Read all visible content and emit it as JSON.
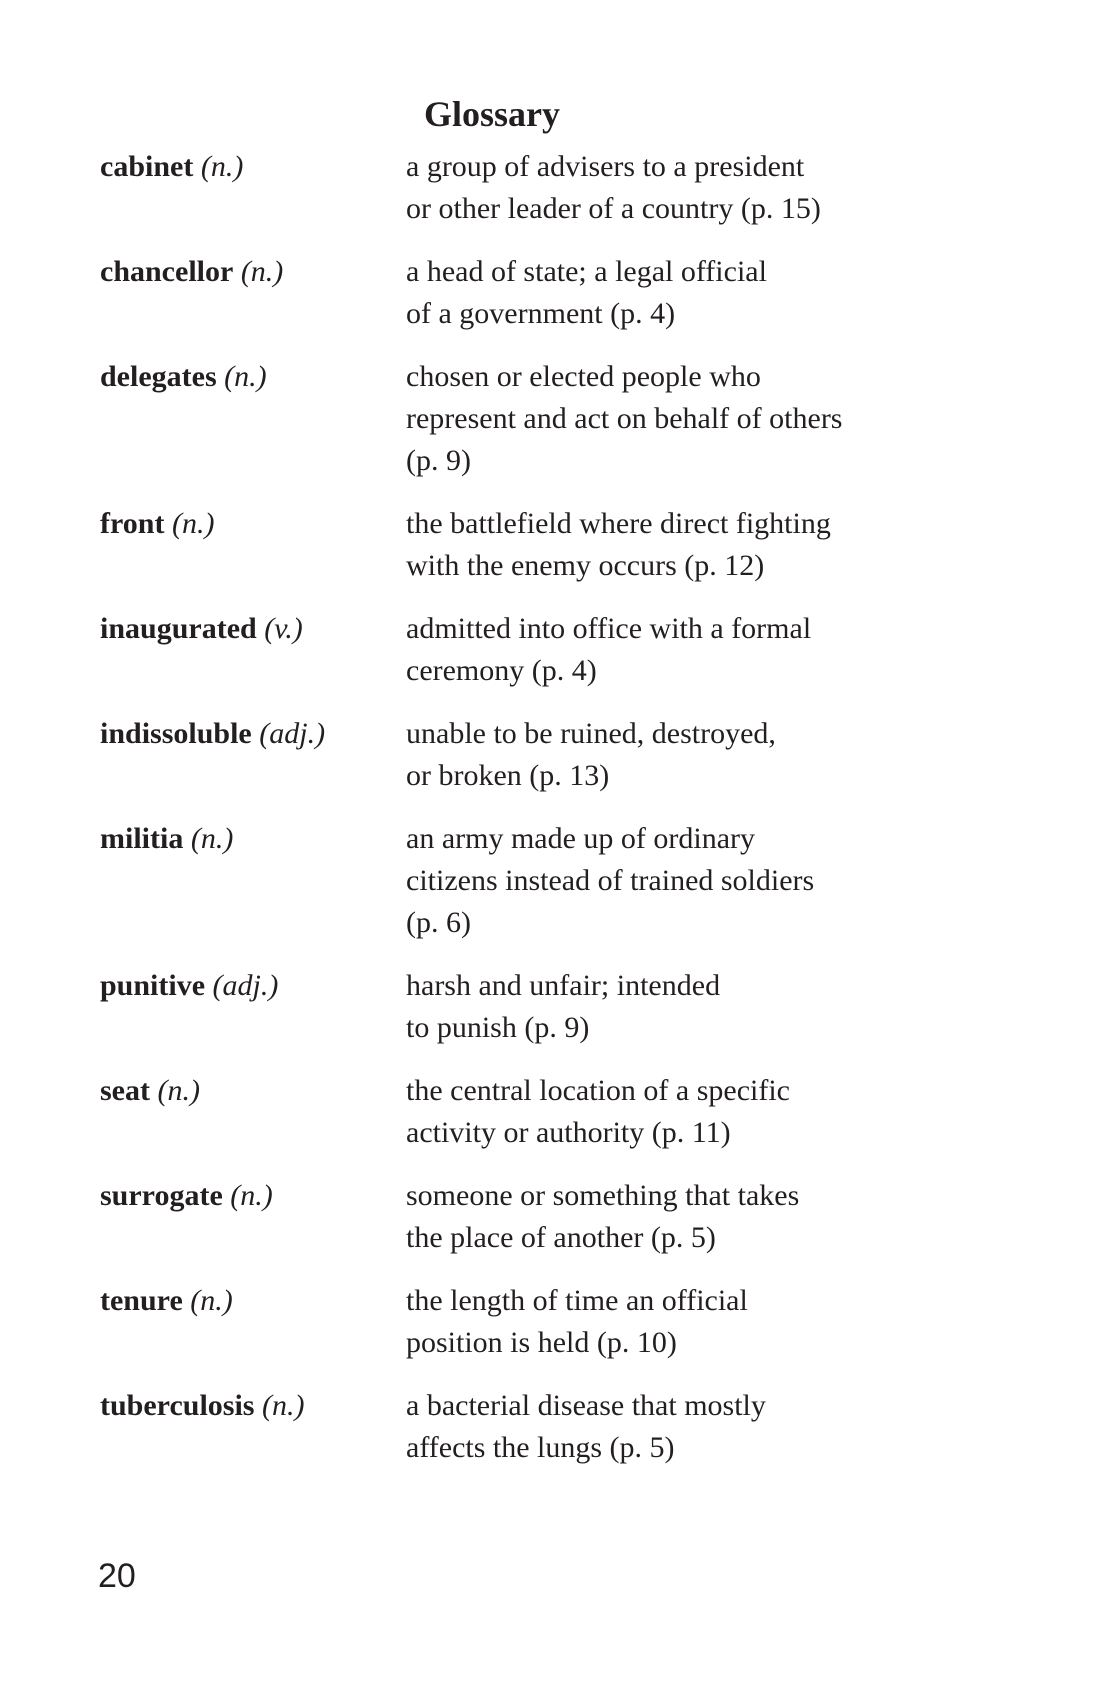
{
  "title": "Glossary",
  "entries": [
    {
      "term": "cabinet",
      "pos": "(n.)",
      "lines": [
        "a group of advisers to a president",
        "or other leader of a country (p. 15)"
      ]
    },
    {
      "term": "chancellor",
      "pos": "(n.)",
      "lines": [
        "a head of state; a legal official",
        "of a government (p. 4)"
      ]
    },
    {
      "term": "delegates",
      "pos": "(n.)",
      "lines": [
        "chosen or elected people who",
        "represent and act on behalf of others",
        "(p. 9)"
      ]
    },
    {
      "term": "front",
      "pos": "(n.)",
      "lines": [
        "the battlefield where direct fighting",
        "with the enemy occurs (p. 12)"
      ]
    },
    {
      "term": "inaugurated",
      "pos": "(v.)",
      "lines": [
        "admitted into office with a formal",
        "ceremony (p. 4)"
      ]
    },
    {
      "term": "indissoluble",
      "pos": "(adj.)",
      "lines": [
        "unable to be ruined, destroyed,",
        "or broken (p. 13)"
      ]
    },
    {
      "term": "militia",
      "pos": "(n.)",
      "lines": [
        "an army made up of ordinary",
        "citizens instead of trained soldiers",
        "(p. 6)"
      ]
    },
    {
      "term": "punitive",
      "pos": "(adj.)",
      "lines": [
        "harsh and unfair; intended",
        "to punish (p. 9)"
      ]
    },
    {
      "term": "seat",
      "pos": "(n.)",
      "lines": [
        "the central location of a specific",
        "activity or authority (p. 11)"
      ]
    },
    {
      "term": "surrogate",
      "pos": "(n.)",
      "lines": [
        "someone or something that takes",
        "the place of another (p. 5)"
      ]
    },
    {
      "term": "tenure",
      "pos": "(n.)",
      "lines": [
        "the length of time an official",
        "position is held (p. 10)"
      ]
    },
    {
      "term": "tuberculosis",
      "pos": "(n.)",
      "lines": [
        "a bacterial disease that mostly",
        "affects the lungs (p. 5)"
      ]
    }
  ],
  "page_number": "20"
}
